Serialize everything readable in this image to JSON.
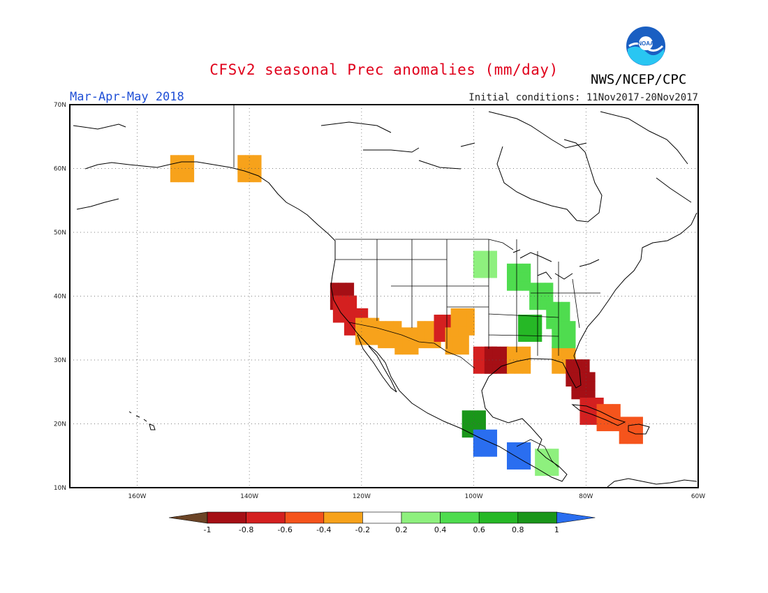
{
  "header": {
    "title": "CFSv2 seasonal Prec anomalies (mm/day)",
    "season": "Mar-Apr-May 2018",
    "initial_conditions": "Initial conditions: 11Nov2017-20Nov2017",
    "agency": "NWS/NCEP/CPC",
    "logo_text": "NOAA"
  },
  "map": {
    "region": "North America",
    "lon_range": [
      -172,
      -60
    ],
    "lat_range": [
      10,
      70
    ],
    "lat_labels": [
      "70N",
      "60N",
      "50N",
      "40N",
      "30N",
      "20N",
      "10N"
    ],
    "lon_labels": [
      "160W",
      "140W",
      "120W",
      "100W",
      "80W",
      "60W"
    ],
    "grid": "dotted"
  },
  "colorbar": {
    "labels": [
      "-1",
      "-0.8",
      "-0.6",
      "-0.4",
      "-0.2",
      "0.2",
      "0.4",
      "0.6",
      "0.8",
      "1"
    ],
    "colors": [
      "#6b4426",
      "#a50f15",
      "#d42020",
      "#f5541c",
      "#f7a21b",
      "#ffffff",
      "#8ef07e",
      "#4fdc4f",
      "#26b826",
      "#1a961a",
      "#2a6ef0"
    ]
  },
  "anomalies": [
    {
      "lon": -123.5,
      "lat": 40,
      "level": -0.8,
      "color": "#a50f15"
    },
    {
      "lon": -123,
      "lat": 38,
      "level": -0.6,
      "color": "#d42020"
    },
    {
      "lon": -121,
      "lat": 36,
      "level": -0.6,
      "color": "#d42020"
    },
    {
      "lon": -119,
      "lat": 34.5,
      "level": -0.4,
      "color": "#f7a21b"
    },
    {
      "lon": -115,
      "lat": 34,
      "level": -0.4,
      "color": "#f7a21b"
    },
    {
      "lon": -112,
      "lat": 33,
      "level": -0.4,
      "color": "#f7a21b"
    },
    {
      "lon": -108,
      "lat": 34,
      "level": -0.4,
      "color": "#f7a21b"
    },
    {
      "lon": -105,
      "lat": 35,
      "level": -0.6,
      "color": "#d42020"
    },
    {
      "lon": -103,
      "lat": 33,
      "level": -0.4,
      "color": "#f7a21b"
    },
    {
      "lon": -102,
      "lat": 36,
      "level": -0.4,
      "color": "#f7a21b"
    },
    {
      "lon": -98,
      "lat": 30,
      "level": -0.6,
      "color": "#d42020"
    },
    {
      "lon": -96,
      "lat": 30,
      "level": -0.8,
      "color": "#a50f15"
    },
    {
      "lon": -92,
      "lat": 30,
      "level": -0.4,
      "color": "#f7a21b"
    },
    {
      "lon": -84,
      "lat": 30,
      "level": -0.4,
      "color": "#f7a21b"
    },
    {
      "lon": -81.5,
      "lat": 28,
      "level": -0.8,
      "color": "#a50f15"
    },
    {
      "lon": -80.5,
      "lat": 26,
      "level": -1.0,
      "color": "#a50f15"
    },
    {
      "lon": -79,
      "lat": 22,
      "level": -0.6,
      "color": "#d42020"
    },
    {
      "lon": -76,
      "lat": 21,
      "level": -0.4,
      "color": "#f5541c"
    },
    {
      "lon": -72,
      "lat": 19,
      "level": -0.4,
      "color": "#f5541c"
    },
    {
      "lon": -152,
      "lat": 60,
      "level": -0.4,
      "color": "#f7a21b"
    },
    {
      "lon": -140,
      "lat": 60,
      "level": -0.4,
      "color": "#f7a21b"
    },
    {
      "lon": -98,
      "lat": 45,
      "level": 0.2,
      "color": "#8ef07e"
    },
    {
      "lon": -92,
      "lat": 43,
      "level": 0.4,
      "color": "#4fdc4f"
    },
    {
      "lon": -88,
      "lat": 40,
      "level": 0.4,
      "color": "#4fdc4f"
    },
    {
      "lon": -85,
      "lat": 37,
      "level": 0.4,
      "color": "#4fdc4f"
    },
    {
      "lon": -90,
      "lat": 35,
      "level": 0.6,
      "color": "#26b826"
    },
    {
      "lon": -84,
      "lat": 34,
      "level": 0.4,
      "color": "#4fdc4f"
    },
    {
      "lon": -100,
      "lat": 20,
      "level": 0.8,
      "color": "#1a961a"
    },
    {
      "lon": -98,
      "lat": 17,
      "level": 1.0,
      "color": "#2a6ef0"
    },
    {
      "lon": -92,
      "lat": 15,
      "level": 1.0,
      "color": "#2a6ef0"
    },
    {
      "lon": -87,
      "lat": 14,
      "level": 0.4,
      "color": "#8ef07e"
    }
  ]
}
